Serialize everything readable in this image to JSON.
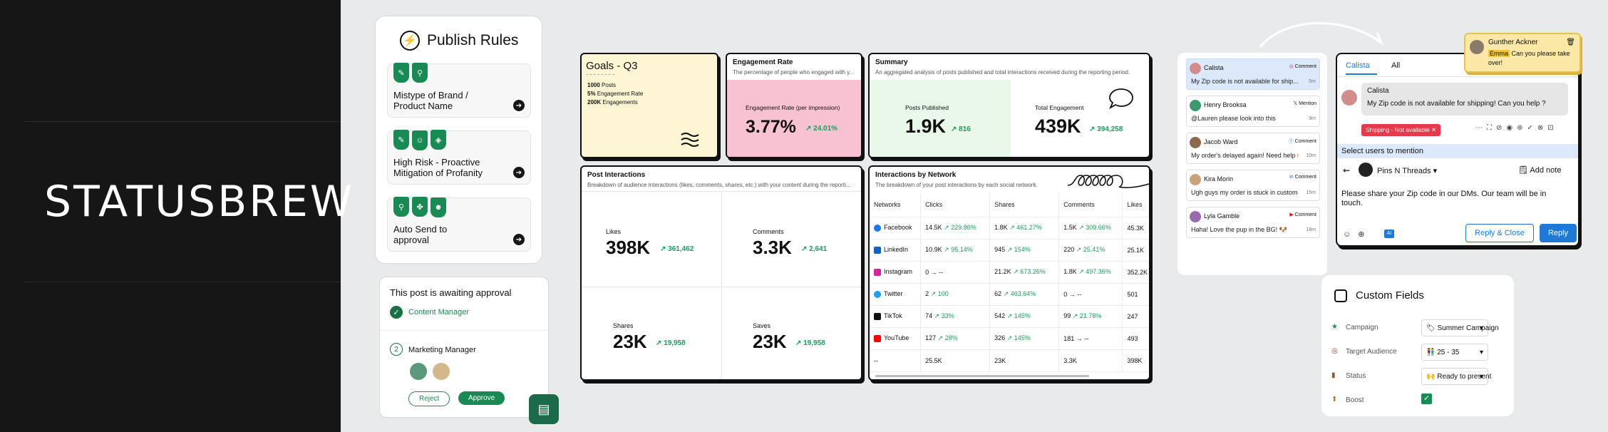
{
  "brand": {
    "logo_text": "STATUSBREW"
  },
  "publish_rules": {
    "title": "Publish Rules",
    "rules": [
      {
        "label_line1": "Mistype of Brand /",
        "label_line2": "Product Name",
        "icons": [
          "edit-check-icon",
          "stamp-icon"
        ]
      },
      {
        "label_line1": "High Risk - Proactive",
        "label_line2": "Mitigation of Profanity",
        "icons": [
          "edit-check-icon",
          "user-icon",
          "tag-icon"
        ]
      },
      {
        "label_line1": "Auto Send to",
        "label_line2": "approval",
        "icons": [
          "stamp-icon",
          "team-icon",
          "users-icon"
        ]
      }
    ]
  },
  "approval": {
    "title": "This post is awaiting approval",
    "step1": "Content Manager",
    "step2_num": "2",
    "step2": "Marketing Manager",
    "reject": "Reject",
    "approve": "Approve"
  },
  "goals": {
    "title": "Goals - Q3",
    "items": [
      {
        "value": "1000",
        "label": "Posts"
      },
      {
        "value": "5%",
        "label": "Engagement Rate"
      },
      {
        "value": "200K",
        "label": "Engagements"
      }
    ]
  },
  "engagement_rate": {
    "title": "Engagement Rate",
    "subtitle": "The percentage of people who engaged with y...",
    "metric_label": "Engagement Rate (per impression)",
    "value": "3.77%",
    "change": "↗ 24.01%"
  },
  "summary": {
    "title": "Summary",
    "subtitle": "An aggregated analysis of posts published and total interactions received during the reporting period.",
    "posts_label": "Posts Published",
    "posts_value": "1.9K",
    "posts_change": "↗ 816",
    "eng_label": "Total Engagement",
    "eng_value": "439K",
    "eng_change": "↗ 394,258"
  },
  "post_interactions": {
    "title": "Post Interactions",
    "subtitle": "Breakdown of audience interactions (likes, comments, shares, etc.) with your content during the reporti...",
    "metrics": [
      {
        "label": "Likes",
        "value": "398K",
        "change": "↗ 361,462"
      },
      {
        "label": "Comments",
        "value": "3.3K",
        "change": "↗ 2,641"
      },
      {
        "label": "Shares",
        "value": "23K",
        "change": "↗ 19,958"
      },
      {
        "label": "Saves",
        "value": "23K",
        "change": "↗ 19,958"
      }
    ]
  },
  "network": {
    "title": "Interactions by Network",
    "subtitle": "The breakdown of your post interactions by each social network.",
    "headers": [
      "Networks",
      "Clicks",
      "Shares",
      "Comments",
      "Likes"
    ],
    "rows": [
      {
        "name": "Facebook",
        "color": "#1877f2",
        "clicks": "14.5K",
        "clicks_ch": "↗ 229.86%",
        "shares": "1.8K",
        "shares_ch": "↗ 461.27%",
        "comments": "1.5K",
        "comments_ch": "↗ 309.66%",
        "likes": "45.3K"
      },
      {
        "name": "LinkedIn",
        "color": "#0a66c2",
        "clicks": "10.9K",
        "clicks_ch": "↗ 95.14%",
        "shares": "945",
        "shares_ch": "↗ 154%",
        "comments": "220",
        "comments_ch": "↗ 25.41%",
        "likes": "25.1K"
      },
      {
        "name": "Instagram",
        "color": "#d6249f",
        "clicks": "0",
        "clicks_ch": "→ --",
        "shares": "21.2K",
        "shares_ch": "↗ 673.26%",
        "comments": "1.8K",
        "comments_ch": "↗ 497.36%",
        "likes": "352.2K"
      },
      {
        "name": "Twitter",
        "color": "#1da1f2",
        "clicks": "2",
        "clicks_ch": "↗ 100",
        "shares": "62",
        "shares_ch": "↗ 463.64%",
        "comments": "0",
        "comments_ch": "→ --",
        "likes": "501"
      },
      {
        "name": "TikTok",
        "color": "#111111",
        "clicks": "74",
        "clicks_ch": "↗ 33%",
        "shares": "542",
        "shares_ch": "↗ 145%",
        "comments": "99",
        "comments_ch": "↗ 21.78%",
        "likes": "247"
      },
      {
        "name": "YouTube",
        "color": "#ff0000",
        "clicks": "127",
        "clicks_ch": "↗ 28%",
        "shares": "326",
        "shares_ch": "↗ 145%",
        "comments": "181",
        "comments_ch": "→ --",
        "likes": "493"
      },
      {
        "name": "--",
        "color": "",
        "clicks": "25.5K",
        "clicks_ch": "",
        "shares": "23K",
        "shares_ch": "",
        "comments": "3.3K",
        "comments_ch": "",
        "likes": "398K"
      }
    ]
  },
  "inbox": {
    "messages": [
      {
        "name": "Calista",
        "tag": "Comment",
        "text": "My Zip code is not available for ship...",
        "time": "5m"
      },
      {
        "name": "Henry Brooksa",
        "tag": "Mention",
        "text": "@Lauren please look into this",
        "time": "9m"
      },
      {
        "name": "Jacob Ward",
        "tag": "Comment",
        "text": "My order's delayed again! Need help 😡",
        "time": "10m"
      },
      {
        "name": "Kira Morin",
        "tag": "Comment",
        "text": "Ugh guys my order is stuck in customs! 😢",
        "time": "15m"
      },
      {
        "name": "Lyla Gamble",
        "tag": "Comment",
        "text": "Haha! Love the pup in the BG! 🐶",
        "time": "18m"
      }
    ]
  },
  "reply": {
    "tabs": [
      "Calista",
      "All"
    ],
    "author": "Calista",
    "message": "My Zip code is not available for shipping! Can you help ?",
    "tag": "Shipping - Not available",
    "mention_label": "Select users to mention",
    "account": "Pins N Threads",
    "add_note": "Add note",
    "draft": "Please share your Zip code in our DMs. Our team will be in touch.",
    "reply_close": "Reply & Close",
    "reply": "Reply"
  },
  "note": {
    "name": "Gunther Ackner",
    "mention": "Emma",
    "text": "Can you please take over!"
  },
  "custom_fields": {
    "title": "Custom Fields",
    "fields": [
      {
        "label": "Campaign",
        "value": "🏷 Summer Campaign"
      },
      {
        "label": "Target Audience",
        "value": "👫 25 - 35"
      },
      {
        "label": "Status",
        "value": "🙌 Ready to present"
      },
      {
        "label": "Boost",
        "value": ""
      }
    ]
  },
  "colors": {
    "accent_green": "#1a8a55",
    "reply_blue": "#1f7ad6",
    "goals_bg": "#fdf5d3",
    "engagement_bg": "#f9c2d2",
    "summary_bg": "#e9f8e8"
  }
}
